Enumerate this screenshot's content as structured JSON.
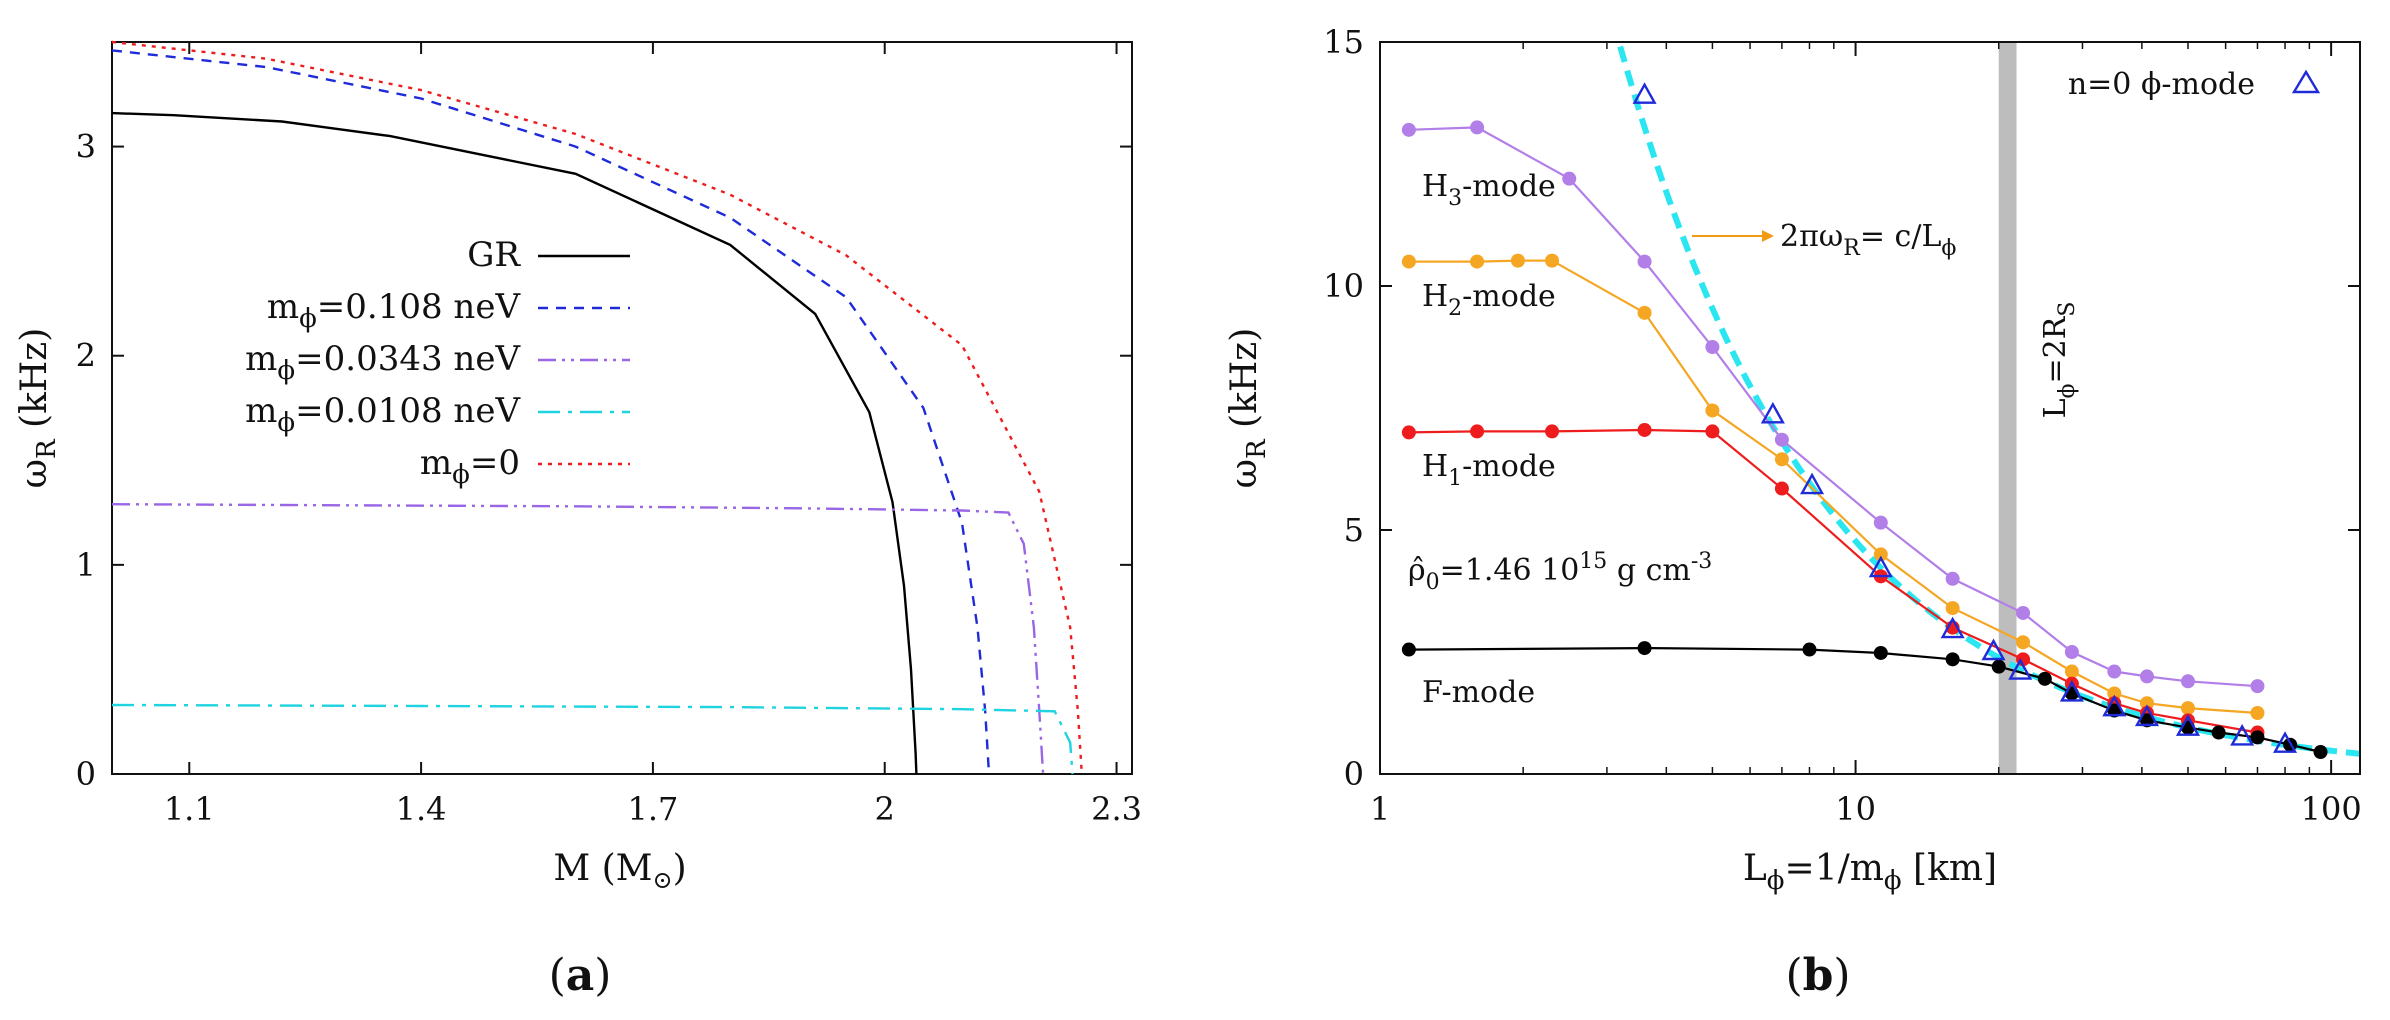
{
  "chart_data": [
    {
      "type": "line",
      "panel_label": {
        "open": "(",
        "letter": "a",
        "close": ")"
      },
      "xlabel": "M (M",
      "xlabel_sub": "⊙",
      "xlabel_close": ")",
      "ylabel": "ω",
      "ylabel_sub": "R",
      "ylabel_unit": " (kHz)",
      "xlim": [
        1.0,
        2.32
      ],
      "ylim": [
        0,
        3.5
      ],
      "xticks": [
        "1.1",
        "1.4",
        "1.7",
        "2",
        "2.3"
      ],
      "xtick_values": [
        1.1,
        1.4,
        1.7,
        2.0,
        2.3
      ],
      "yticks": [
        "0",
        "1",
        "2",
        "3"
      ],
      "ytick_values": [
        0,
        1,
        2,
        3
      ],
      "series": [
        {
          "name": "GR",
          "legend_pre": "GR",
          "legend_sub": "",
          "legend_post": "",
          "color": "#000000",
          "dash": "",
          "x": [
            1.0,
            1.08,
            1.22,
            1.36,
            1.6,
            1.8,
            1.91,
            1.98,
            2.01,
            2.025,
            2.034,
            2.04,
            2.041
          ],
          "y": [
            3.16,
            3.15,
            3.12,
            3.05,
            2.87,
            2.53,
            2.2,
            1.73,
            1.3,
            0.9,
            0.5,
            0.1,
            0.0
          ]
        },
        {
          "name": "m_phi=0.108 neV",
          "legend_pre": "m",
          "legend_sub": "ϕ",
          "legend_post": "=0.108 neV",
          "color": "#1f2bd8",
          "dash": "10,8",
          "x": [
            1.0,
            1.2,
            1.4,
            1.6,
            1.8,
            1.95,
            2.05,
            2.1,
            2.12,
            2.13,
            2.135
          ],
          "y": [
            3.46,
            3.38,
            3.23,
            3.0,
            2.66,
            2.28,
            1.75,
            1.2,
            0.7,
            0.3,
            0.0
          ]
        },
        {
          "name": "m_phi=0.0343 neV",
          "legend_pre": "m",
          "legend_sub": "ϕ",
          "legend_post": "=0.0343 neV",
          "color": "#9966e6",
          "dash": "18,6,3,6,3,6",
          "x": [
            1.0,
            1.3,
            1.6,
            1.9,
            2.1,
            2.16,
            2.18,
            2.193,
            2.2,
            2.205
          ],
          "y": [
            1.29,
            1.285,
            1.28,
            1.27,
            1.26,
            1.25,
            1.1,
            0.7,
            0.3,
            0.0
          ]
        },
        {
          "name": "m_phi=0.0108 neV",
          "legend_pre": "m",
          "legend_sub": "ϕ",
          "legend_post": "=0.0108 neV",
          "color": "#1fd3e0",
          "dash": "22,8,4,8",
          "x": [
            1.0,
            1.4,
            1.8,
            2.1,
            2.22,
            2.24,
            2.243
          ],
          "y": [
            0.33,
            0.325,
            0.32,
            0.31,
            0.3,
            0.15,
            0.0
          ]
        },
        {
          "name": "m_phi=0",
          "legend_pre": "m",
          "legend_sub": "ϕ",
          "legend_post": "=0",
          "color": "#ee1c1c",
          "dash": "4,6",
          "x": [
            1.0,
            1.2,
            1.4,
            1.6,
            1.8,
            1.95,
            2.1,
            2.2,
            2.24,
            2.25,
            2.255
          ],
          "y": [
            3.5,
            3.42,
            3.27,
            3.06,
            2.77,
            2.48,
            2.05,
            1.35,
            0.7,
            0.3,
            0.0
          ]
        }
      ]
    },
    {
      "type": "line",
      "panel_label": {
        "open": "(",
        "letter": "b",
        "close": ")"
      },
      "xlabel": "L",
      "xlabel_sub": "ϕ",
      "xlabel_post": "=1/m",
      "xlabel_sub2": "ϕ",
      "xlabel_tail": " [km]",
      "ylabel": "ω",
      "ylabel_sub": "R",
      "ylabel_unit": " (kHz)",
      "xscale": "log",
      "xlim": [
        1,
        115
      ],
      "ylim": [
        0,
        15
      ],
      "xticks": [
        "1",
        "10",
        "100"
      ],
      "xtick_values": [
        1,
        10,
        100
      ],
      "yticks": [
        "0",
        "5",
        "10",
        "15"
      ],
      "ytick_values": [
        0,
        5,
        10,
        15
      ],
      "band": {
        "x": [
          20.0,
          21.8
        ],
        "color": "#bdbdbd",
        "label_pre": "L",
        "label_sub": "ϕ",
        "label_post": "=2R",
        "label_sub2": "S"
      },
      "dashed_curve": {
        "name": "2πωR = c/Lϕ",
        "color": "#29e6f0",
        "constant": 47.7,
        "x_start": 3.2,
        "x_end": 115
      },
      "annotations": {
        "formula_pre": "2πω",
        "formula_sub": "R",
        "formula_post": "= c/L",
        "formula_sub2": "ϕ",
        "density_pre": "ρ̂",
        "density_sub": "0",
        "density_mid": "=1.46 10",
        "density_sup": "15",
        "density_post": " g cm",
        "density_sup2": "-3",
        "arrow_color": "#f29a14"
      },
      "series": [
        {
          "name": "H3-mode",
          "label_pre": "H",
          "label_sub": "3",
          "label_post": "-mode",
          "color": "#b27ee8",
          "x": [
            1.15,
            1.6,
            2.5,
            3.6,
            5.0,
            7.0,
            11.3,
            16.0,
            22.5,
            28.5,
            35.0,
            41.0,
            50.0,
            70.0
          ],
          "y": [
            13.2,
            13.25,
            12.2,
            10.5,
            8.75,
            6.85,
            5.15,
            4.0,
            3.3,
            2.5,
            2.1,
            2.0,
            1.9,
            1.8
          ]
        },
        {
          "name": "H2-mode",
          "label_pre": "H",
          "label_sub": "2",
          "label_post": "-mode",
          "color": "#f5a623",
          "x": [
            1.15,
            1.6,
            1.95,
            2.3,
            3.6,
            5.0,
            7.0,
            11.3,
            16.0,
            22.5,
            28.5,
            35.0,
            41.0,
            50.0,
            70.0
          ],
          "y": [
            10.5,
            10.5,
            10.52,
            10.52,
            9.45,
            7.45,
            6.45,
            4.5,
            3.4,
            2.7,
            2.1,
            1.65,
            1.45,
            1.35,
            1.25
          ]
        },
        {
          "name": "H1-mode",
          "label_pre": "H",
          "label_sub": "1",
          "label_post": "-mode",
          "color": "#ee1c1c",
          "x": [
            1.15,
            1.6,
            2.3,
            3.6,
            5.0,
            7.0,
            11.3,
            16.0,
            22.5,
            28.5,
            35.0,
            41.0,
            50.0,
            70.0
          ],
          "y": [
            7.0,
            7.02,
            7.02,
            7.05,
            7.02,
            5.85,
            4.05,
            3.0,
            2.35,
            1.85,
            1.45,
            1.25,
            1.1,
            0.85
          ]
        },
        {
          "name": "F-mode",
          "label_pre": "F-mode",
          "label_sub": "",
          "label_post": "",
          "color": "#000000",
          "x": [
            1.15,
            3.6,
            8.0,
            11.3,
            16.0,
            20.0,
            25.0,
            28.5,
            35.0,
            41.0,
            50.0,
            58.0,
            70.0,
            82.0,
            95.0
          ],
          "y": [
            2.55,
            2.58,
            2.55,
            2.48,
            2.35,
            2.2,
            1.95,
            1.65,
            1.3,
            1.1,
            0.95,
            0.85,
            0.75,
            0.6,
            0.45
          ]
        }
      ],
      "phi_mode": {
        "name": "n=0 ϕ-mode",
        "legend_pre": "n=0 ",
        "legend_phi": "ϕ",
        "legend_post": "-mode",
        "color": "#1f2bd8",
        "x": [
          3.6,
          6.7,
          8.1,
          11.3,
          16.0,
          19.5,
          22.2,
          28.5,
          35.0,
          41.0,
          50.0,
          65.0,
          80.0
        ],
        "y": [
          13.9,
          7.35,
          5.9,
          4.2,
          2.95,
          2.5,
          2.1,
          1.65,
          1.35,
          1.15,
          0.95,
          0.75,
          0.6
        ]
      }
    }
  ]
}
